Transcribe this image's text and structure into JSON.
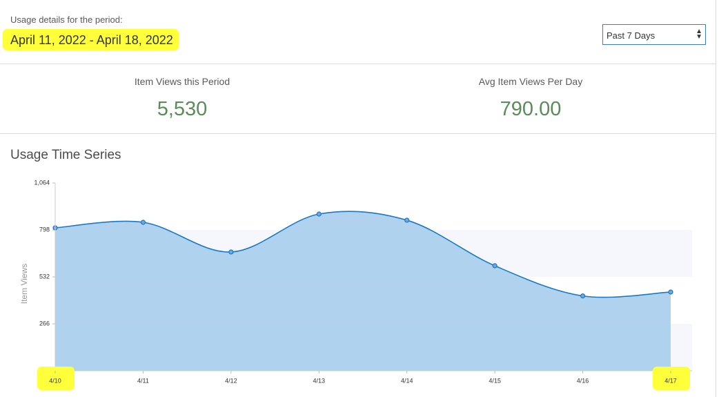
{
  "header": {
    "label": "Usage details for the period:",
    "period": "April 11, 2022 - April 18, 2022"
  },
  "select": {
    "value": "Past 7 Days"
  },
  "stats": [
    {
      "label": "Item Views this Period",
      "value": "5,530"
    },
    {
      "label": "Avg Item Views Per Day",
      "value": "790.00"
    }
  ],
  "chart_data": {
    "type": "area",
    "title": "Usage Time Series",
    "y_label": "Item Views",
    "categories": [
      "4/10",
      "4/11",
      "4/12",
      "4/13",
      "4/14",
      "4/15",
      "4/16",
      "4/17"
    ],
    "values": [
      810,
      841,
      673,
      888,
      853,
      595,
      424,
      446
    ],
    "color": "#1a78c2",
    "fill": "#a7cdec",
    "ylim": [
      0,
      1064
    ],
    "yticks": [
      266,
      532,
      798,
      {
        "value": 1064,
        "label": "1,064"
      }
    ],
    "bands": true
  }
}
